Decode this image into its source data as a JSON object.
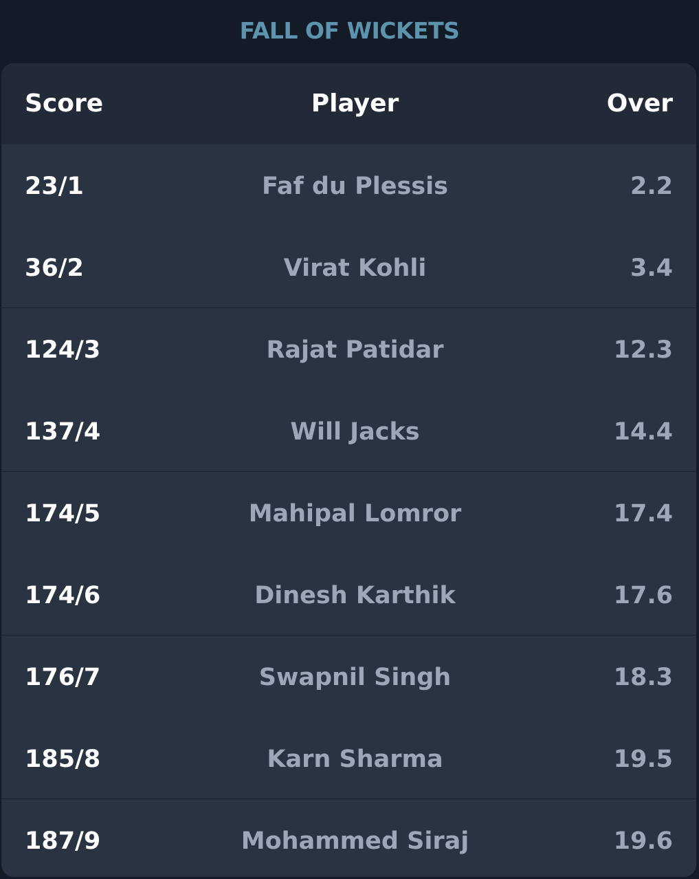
{
  "title": "FALL OF WICKETS",
  "header": {
    "score": "Score",
    "player": "Player",
    "over": "Over"
  },
  "rows": [
    {
      "score": "23/1",
      "player": "Faf du Plessis",
      "over": "2.2"
    },
    {
      "score": "36/2",
      "player": "Virat Kohli",
      "over": "3.4"
    },
    {
      "score": "124/3",
      "player": "Rajat Patidar",
      "over": "12.3"
    },
    {
      "score": "137/4",
      "player": "Will Jacks",
      "over": "14.4"
    },
    {
      "score": "174/5",
      "player": "Mahipal Lomror",
      "over": "17.4"
    },
    {
      "score": "174/6",
      "player": "Dinesh Karthik",
      "over": "17.6"
    },
    {
      "score": "176/7",
      "player": "Swapnil Singh",
      "over": "18.3"
    },
    {
      "score": "185/8",
      "player": "Karn Sharma",
      "over": "19.5"
    },
    {
      "score": "187/9",
      "player": "Mohammed Siraj",
      "over": "19.6"
    }
  ],
  "colors": {
    "background": "#131b26",
    "card": "#2a3341",
    "header": "#222a37",
    "title": "#5e93ae",
    "score_text": "#ffffff",
    "muted_text": "#9da7b8"
  }
}
